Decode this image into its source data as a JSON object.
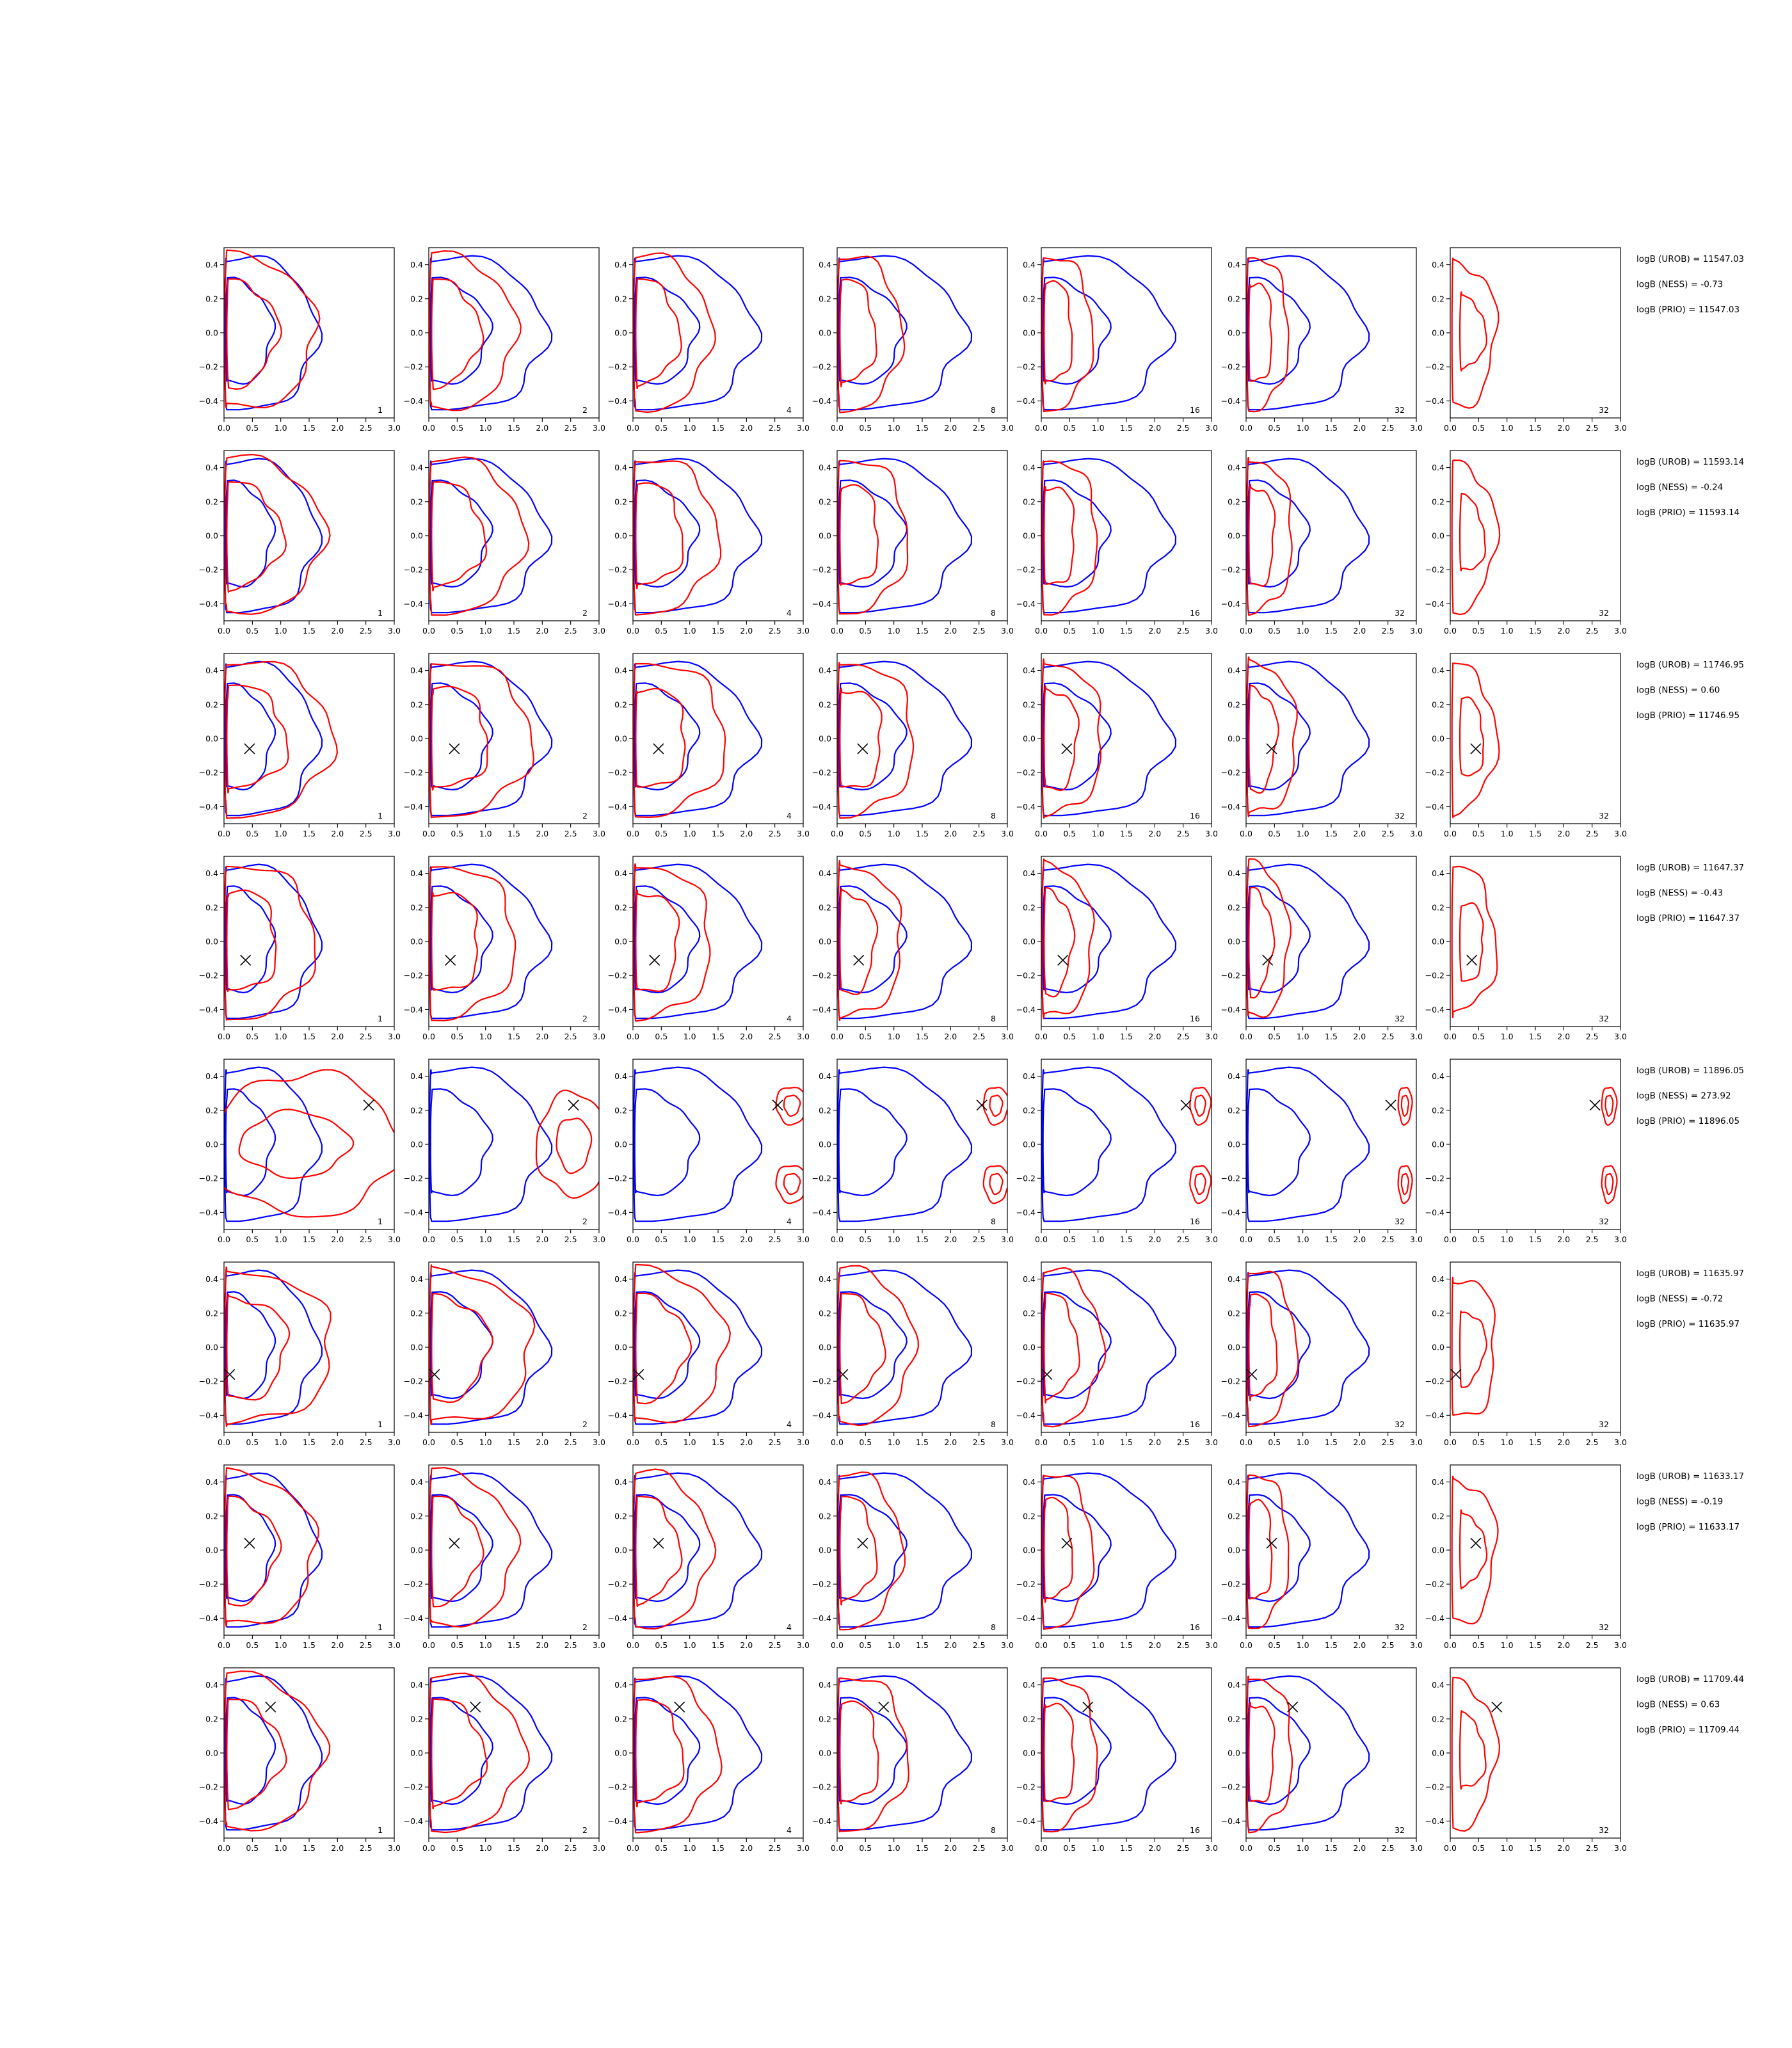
{
  "chart_data": {
    "type": "contour-grid",
    "x_ticks": [
      "0.0",
      "0.5",
      "1.0",
      "1.5",
      "2.0",
      "2.5",
      "3.0"
    ],
    "y_ticks": [
      "0.4",
      "0.2",
      "0.0",
      "−0.2",
      "−0.4"
    ],
    "xlim": [
      0,
      3
    ],
    "ylim": [
      -0.5,
      0.5
    ],
    "column_labels": [
      "1",
      "2",
      "4",
      "8",
      "16",
      "32",
      "32"
    ],
    "colors": {
      "reference": "#0000ff",
      "model": "#ff0000",
      "marker": "#000000"
    },
    "rows": [
      {
        "marker": null,
        "stats": [
          "logB (UROB) = 11547.03",
          "logB (NESS) = -0.73",
          "logB (PRIO) = 11547.03"
        ]
      },
      {
        "marker": null,
        "stats": [
          "logB (UROB) = 11593.14",
          "logB (NESS) = -0.24",
          "logB (PRIO) = 11593.14"
        ]
      },
      {
        "marker": [
          0.45,
          -0.06
        ],
        "stats": [
          "logB (UROB) = 11746.95",
          "logB (NESS) = 0.60",
          "logB (PRIO) = 11746.95"
        ]
      },
      {
        "marker": [
          0.38,
          -0.11
        ],
        "stats": [
          "logB (UROB) = 11647.37",
          "logB (NESS) = -0.43",
          "logB (PRIO) = 11647.37"
        ]
      },
      {
        "marker": [
          2.55,
          0.23
        ],
        "stats": [
          "logB (UROB) = 11896.05",
          "logB (NESS) = 273.92",
          "logB (PRIO) = 11896.05"
        ]
      },
      {
        "marker": [
          0.1,
          -0.16
        ],
        "stats": [
          "logB (UROB) = 11635.97",
          "logB (NESS) = -0.72",
          "logB (PRIO) = 11635.97"
        ]
      },
      {
        "marker": [
          0.45,
          0.04
        ],
        "stats": [
          "logB (UROB) = 11633.17",
          "logB (NESS) = -0.19",
          "logB (PRIO) = 11633.17"
        ]
      },
      {
        "marker": [
          0.82,
          0.27
        ],
        "stats": [
          "logB (UROB) = 11709.44",
          "logB (NESS) = 0.63",
          "logB (PRIO) = 11709.44"
        ]
      }
    ]
  }
}
